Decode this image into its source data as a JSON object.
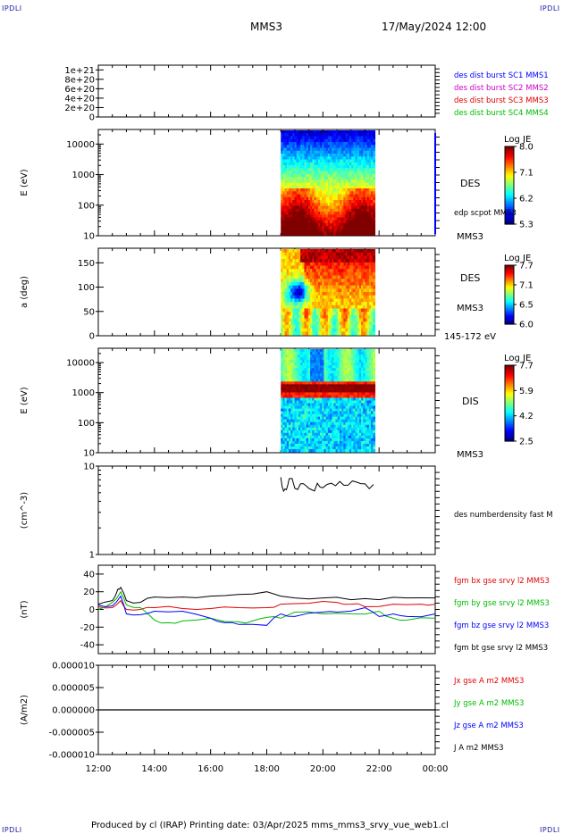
{
  "corner_label": "IPDLI",
  "header": {
    "spacecraft": "MMS3",
    "datetime": "17/May/2024 12:00"
  },
  "footer": {
    "text": "Produced by cl (IRAP)   Printing date: 03/Apr/2025   mms_mms3_srvy_vue_web1.cl"
  },
  "x_axis": {
    "ticks": [
      "12:00",
      "14:00",
      "16:00",
      "18:00",
      "20:00",
      "22:00",
      "00:00"
    ],
    "range_hours": [
      12,
      24
    ]
  },
  "colors": {
    "mms1": "#0000ff",
    "mms2": "#cc00cc",
    "mms3": "#e00000",
    "mms4": "#00bb00",
    "black": "#000000"
  },
  "chart_data": [
    {
      "type": "line",
      "ylabel": "",
      "yticks": [
        "1e+21",
        "8e+20",
        "6e+20",
        "4e+20",
        "2e+20",
        "0"
      ],
      "ylim": [
        0,
        1.1e+21
      ],
      "series": [
        {
          "name": "des dist burst SC1 MMS1",
          "color": "#0000ff"
        },
        {
          "name": "des dist burst SC2 MMS2",
          "color": "#cc00cc"
        },
        {
          "name": "des dist burst SC3 MMS3",
          "color": "#e00000"
        },
        {
          "name": "des dist burst SC4 MMS4",
          "color": "#00bb00"
        }
      ],
      "values_all_series": 0
    },
    {
      "type": "heatmap",
      "ylabel": "E (eV)",
      "yticks": [
        "10000",
        "1000",
        "100",
        "10"
      ],
      "yscale": "log",
      "ylim": [
        10,
        30000
      ],
      "label": "DES",
      "overlay_label": "edp scpot MMS3",
      "spacecraft_label": "MMS3",
      "colorbar": {
        "title": "Log JE",
        "ticks": [
          "8.0",
          "7.1",
          "6.2",
          "5.3"
        ],
        "min": 5.3,
        "max": 8.0
      },
      "data_interval_hours": [
        18.5,
        21.85
      ]
    },
    {
      "type": "heatmap",
      "ylabel": "a (deg)",
      "yticks": [
        "150",
        "100",
        "50",
        "0"
      ],
      "ylim": [
        0,
        180
      ],
      "label": "DES",
      "spacecraft_label": "MMS3",
      "energy_label": "145-172 eV",
      "colorbar": {
        "title": "Log JE",
        "ticks": [
          "7.7",
          "7.1",
          "6.5",
          "6.0"
        ],
        "min": 6.0,
        "max": 7.7
      },
      "data_interval_hours": [
        18.5,
        21.85
      ]
    },
    {
      "type": "heatmap",
      "ylabel": "E (eV)",
      "yticks": [
        "10000",
        "1000",
        "100",
        "10"
      ],
      "yscale": "log",
      "ylim": [
        10,
        30000
      ],
      "label": "DIS",
      "spacecraft_label": "MMS3",
      "colorbar": {
        "title": "Log JE",
        "ticks": [
          "7.7",
          "5.9",
          "4.2",
          "2.5"
        ],
        "min": 2.5,
        "max": 7.7
      },
      "data_interval_hours": [
        18.5,
        21.85
      ]
    },
    {
      "type": "line",
      "ylabel": "(cm^-3)",
      "yticks": [
        "10",
        "1"
      ],
      "yscale": "log",
      "ylim": [
        1,
        10
      ],
      "series": [
        {
          "name": "des numberdensity fast M",
          "color": "#000000",
          "x": [
            18.5,
            18.6,
            18.7,
            18.8,
            19.0,
            19.2,
            19.4,
            19.6,
            19.8,
            20.0,
            20.3,
            20.6,
            20.9,
            21.2,
            21.5,
            21.8
          ],
          "y": [
            7.5,
            5.2,
            5.4,
            7.2,
            5.6,
            6.3,
            6.0,
            5.4,
            6.4,
            5.7,
            6.4,
            6.7,
            6.1,
            6.6,
            6.3,
            6.2
          ]
        }
      ]
    },
    {
      "type": "line",
      "ylabel": "(nT)",
      "yticks": [
        "40",
        "20",
        "0",
        "-20",
        "-40"
      ],
      "ylim": [
        -50,
        50
      ],
      "series": [
        {
          "name": "fgm bx gse srvy l2 MMS3",
          "color": "#e00000",
          "x": [
            12.0,
            12.5,
            12.8,
            13.0,
            13.5,
            14.0,
            15.0,
            16.0,
            17.0,
            18.0,
            18.5,
            19.5,
            20.5,
            21.0,
            21.5,
            22.5,
            23.5,
            24.0
          ],
          "y": [
            3,
            2,
            10,
            0,
            0,
            2,
            1,
            1,
            2,
            2,
            6,
            7,
            8,
            6,
            3,
            6,
            6,
            6
          ]
        },
        {
          "name": "fgm by gse srvy l2 MMS3",
          "color": "#00bb00",
          "x": [
            12.0,
            12.5,
            12.8,
            13.0,
            13.5,
            14.0,
            14.5,
            15.0,
            16.0,
            17.0,
            17.5,
            18.0,
            18.5,
            19.0,
            20.0,
            21.0,
            22.0,
            22.5,
            23.0,
            24.0
          ],
          "y": [
            0,
            8,
            20,
            5,
            2,
            -12,
            -15,
            -13,
            -10,
            -14,
            -13,
            -9,
            -10,
            -3,
            -5,
            -5,
            -2,
            -10,
            -12,
            -10
          ]
        },
        {
          "name": "fgm bz gse srvy l2 MMS3",
          "color": "#0000ff",
          "x": [
            12.0,
            12.5,
            12.8,
            13.0,
            13.5,
            14.0,
            15.0,
            16.0,
            16.5,
            17.0,
            18.0,
            18.5,
            19.0,
            20.0,
            20.5,
            21.5,
            22.0,
            22.5,
            23.0,
            24.0
          ],
          "y": [
            5,
            4,
            15,
            -5,
            -6,
            -2,
            -2,
            -10,
            -15,
            -17,
            -18,
            -5,
            -8,
            -3,
            -3,
            2,
            -8,
            -5,
            -8,
            -5
          ]
        },
        {
          "name": "fgm bt gse srvy l2 MMS3",
          "color": "#000000",
          "x": [
            12.0,
            12.5,
            12.7,
            12.8,
            13.0,
            13.5,
            14.0,
            15.0,
            16.0,
            17.0,
            18.0,
            19.0,
            20.0,
            21.0,
            22.0,
            23.0,
            24.0
          ],
          "y": [
            6,
            10,
            23,
            25,
            10,
            8,
            14,
            14,
            15,
            17,
            20,
            13,
            13,
            11,
            11,
            13,
            13
          ]
        }
      ]
    },
    {
      "type": "line",
      "ylabel": "(A/m2)",
      "yticks": [
        "0.000010",
        "0.000005",
        "0.000000",
        "-0.000005",
        "-0.000010"
      ],
      "ylim": [
        -1e-05,
        1e-05
      ],
      "series": [
        {
          "name": "Jx gse A m2 MMS3",
          "color": "#e00000"
        },
        {
          "name": "Jy gse A m2 MMS3",
          "color": "#00bb00"
        },
        {
          "name": "Jz gse A m2 MMS3",
          "color": "#0000ff"
        },
        {
          "name": "J A m2 MMS3",
          "color": "#000000"
        }
      ],
      "values_all_series": 0
    }
  ]
}
